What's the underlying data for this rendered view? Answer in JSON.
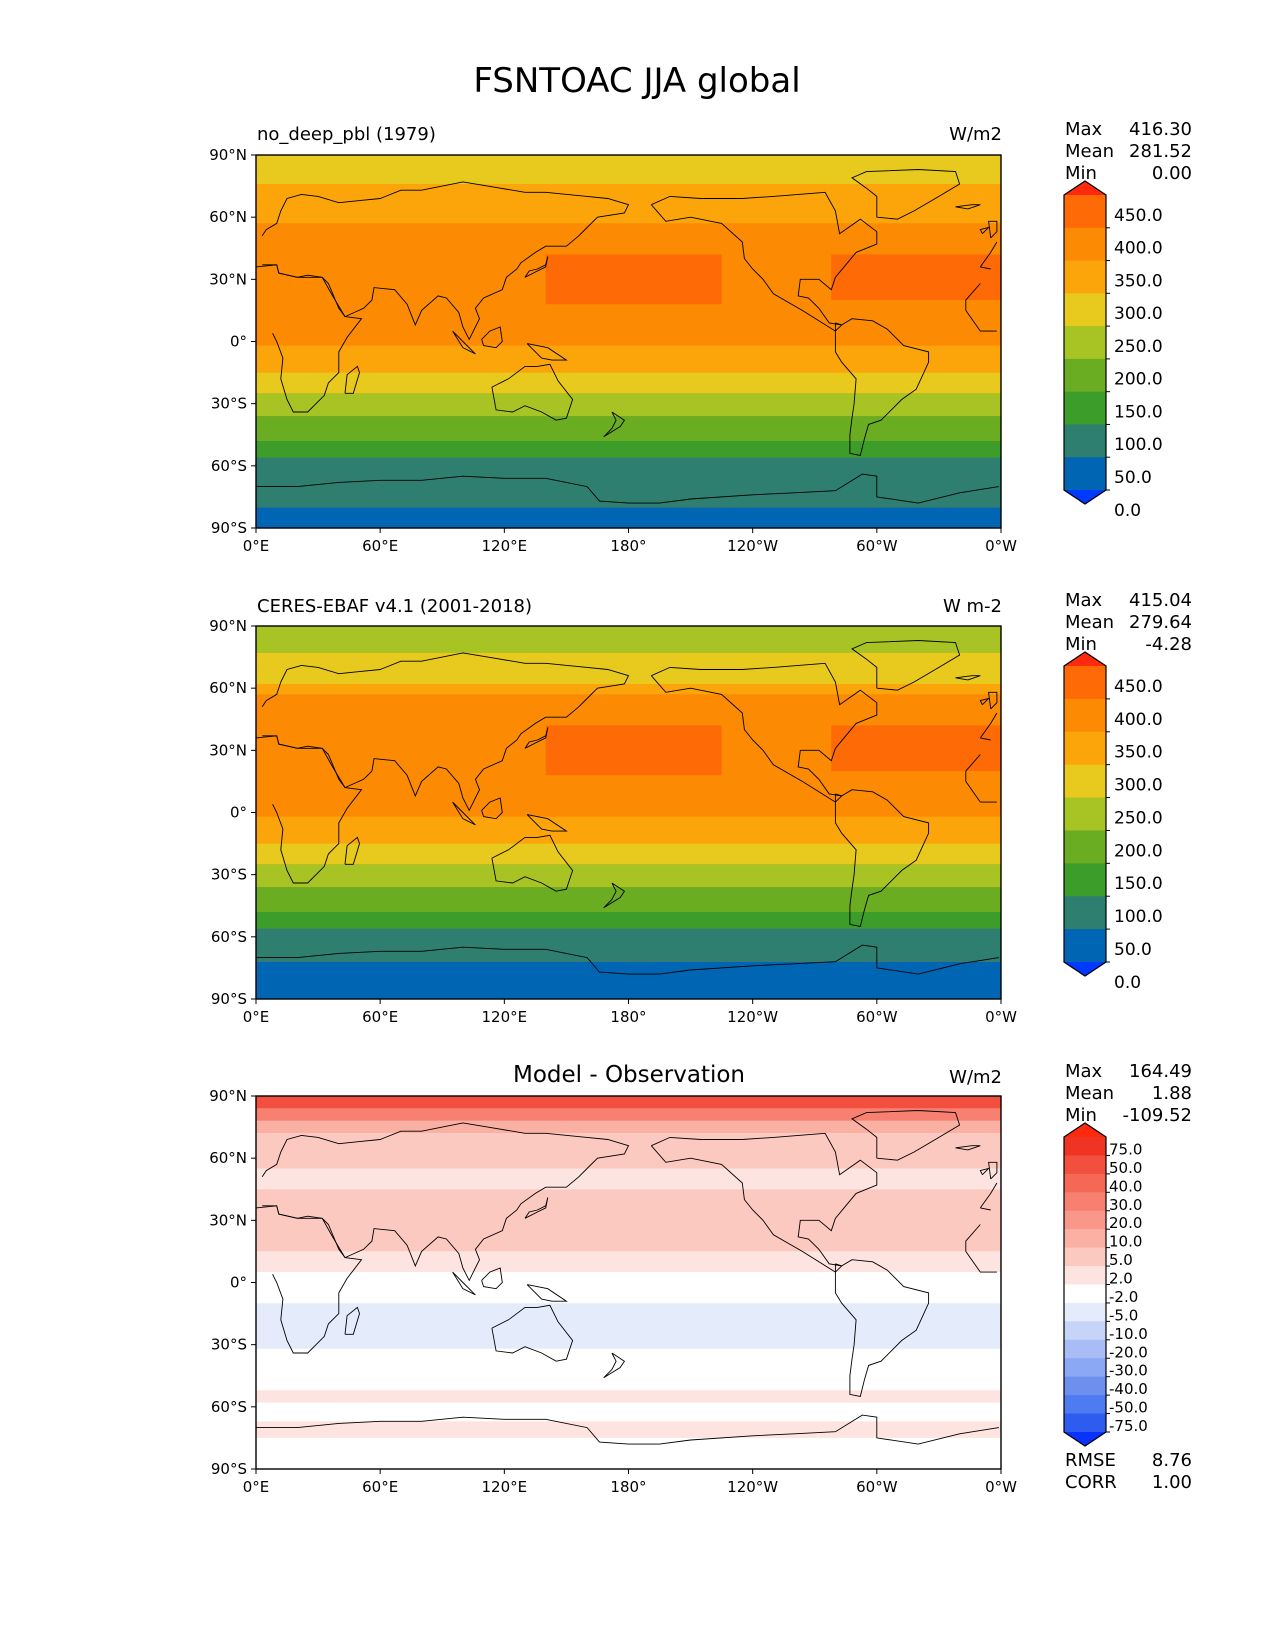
{
  "figure": {
    "title": "FSNTOAC JJA global"
  },
  "axes": {
    "lat_ticks": [
      "90°N",
      "60°N",
      "30°N",
      "0°",
      "30°S",
      "60°S",
      "90°S"
    ],
    "lon_ticks": [
      "0°E",
      "60°E",
      "120°E",
      "180°",
      "120°W",
      "60°W",
      "0°W"
    ]
  },
  "colors": {
    "main_levels": [
      "#0039ff",
      "#0066b3",
      "#2e7f70",
      "#3d9d2a",
      "#6aad22",
      "#a7c424",
      "#e8c91e",
      "#fca50a",
      "#fd8a03",
      "#fd6a06",
      "#ff2a0e"
    ],
    "diff_levels": [
      "#0a32ff",
      "#2f5cf0",
      "#4f7bf0",
      "#6d90ef",
      "#8aa8f3",
      "#a9bcf5",
      "#c6d4f8",
      "#e4ebfb",
      "#ffffff",
      "#fde4e0",
      "#fcc9c0",
      "#fbb0a4",
      "#f9988a",
      "#f78070",
      "#f56856",
      "#f24f3e",
      "#ef3424",
      "#ff2a0e"
    ]
  },
  "chart_data": [
    {
      "type": "heatmap",
      "name": "test",
      "title": "no_deep_pbl (1979)",
      "units": "W/m2",
      "stats": {
        "max_label": "Max",
        "max": "416.30",
        "mean_label": "Mean",
        "mean": "281.52",
        "min_label": "Min",
        "min": "0.00"
      },
      "colorbar": {
        "levels": [
          "450.0",
          "400.0",
          "350.0",
          "300.0",
          "250.0",
          "200.0",
          "150.0",
          "100.0",
          "50.0",
          "0.0"
        ],
        "extend": "both"
      },
      "zonal_bands": [
        {
          "from": 90,
          "to": 82,
          "value": 260
        },
        {
          "from": 82,
          "to": 76,
          "value": 280
        },
        {
          "from": 76,
          "to": 67,
          "value": 320
        },
        {
          "from": 67,
          "to": 57,
          "value": 345
        },
        {
          "from": 57,
          "to": 40,
          "value": 360
        },
        {
          "from": 40,
          "to": 18,
          "value": 375
        },
        {
          "from": 18,
          "to": -2,
          "value": 360
        },
        {
          "from": -2,
          "to": -8,
          "value": 330
        },
        {
          "from": -8,
          "to": -15,
          "value": 310
        },
        {
          "from": -15,
          "to": -20,
          "value": 290
        },
        {
          "from": -20,
          "to": -25,
          "value": 270
        },
        {
          "from": -25,
          "to": -30,
          "value": 240
        },
        {
          "from": -30,
          "to": -36,
          "value": 215
        },
        {
          "from": -36,
          "to": -42,
          "value": 185
        },
        {
          "from": -42,
          "to": -48,
          "value": 150
        },
        {
          "from": -48,
          "to": -56,
          "value": 110
        },
        {
          "from": -56,
          "to": -80,
          "value": 70
        },
        {
          "from": -80,
          "to": -90,
          "value": 25
        }
      ]
    },
    {
      "type": "heatmap",
      "name": "reference",
      "title": "CERES-EBAF v4.1 (2001-2018)",
      "units": "W m-2",
      "stats": {
        "max_label": "Max",
        "max": "415.04",
        "mean_label": "Mean",
        "mean": "279.64",
        "min_label": "Min",
        "min": "-4.28"
      },
      "colorbar": {
        "levels": [
          "450.0",
          "400.0",
          "350.0",
          "300.0",
          "250.0",
          "200.0",
          "150.0",
          "100.0",
          "50.0",
          "0.0"
        ],
        "extend": "both"
      },
      "zonal_bands": [
        {
          "from": 90,
          "to": 77,
          "value": 230
        },
        {
          "from": 77,
          "to": 70,
          "value": 255
        },
        {
          "from": 70,
          "to": 62,
          "value": 290
        },
        {
          "from": 62,
          "to": 57,
          "value": 320
        },
        {
          "from": 57,
          "to": 42,
          "value": 360
        },
        {
          "from": 42,
          "to": 18,
          "value": 375
        },
        {
          "from": 18,
          "to": -2,
          "value": 360
        },
        {
          "from": -2,
          "to": -8,
          "value": 330
        },
        {
          "from": -8,
          "to": -15,
          "value": 310
        },
        {
          "from": -15,
          "to": -20,
          "value": 290
        },
        {
          "from": -20,
          "to": -25,
          "value": 270
        },
        {
          "from": -25,
          "to": -30,
          "value": 240
        },
        {
          "from": -30,
          "to": -36,
          "value": 215
        },
        {
          "from": -36,
          "to": -42,
          "value": 185
        },
        {
          "from": -42,
          "to": -48,
          "value": 150
        },
        {
          "from": -48,
          "to": -56,
          "value": 110
        },
        {
          "from": -56,
          "to": -72,
          "value": 70
        },
        {
          "from": -72,
          "to": -90,
          "value": 25
        }
      ]
    },
    {
      "type": "heatmap",
      "name": "difference",
      "title": "Model - Observation",
      "units": "W/m2",
      "stats": {
        "max_label": "Max",
        "max": "164.49",
        "mean_label": "Mean",
        "mean": "1.88",
        "min_label": "Min",
        "min": "-109.52"
      },
      "metrics": {
        "rmse_label": "RMSE",
        "rmse": "8.76",
        "corr_label": "CORR",
        "corr": "1.00"
      },
      "colorbar": {
        "levels": [
          "75.0",
          "50.0",
          "40.0",
          "30.0",
          "20.0",
          "10.0",
          "5.0",
          "2.0",
          "-2.0",
          "-5.0",
          "-10.0",
          "-20.0",
          "-30.0",
          "-40.0",
          "-50.0",
          "-75.0"
        ],
        "extend": "both"
      },
      "zonal_bands": [
        {
          "from": 90,
          "to": 84,
          "value": 60
        },
        {
          "from": 84,
          "to": 78,
          "value": 35
        },
        {
          "from": 78,
          "to": 72,
          "value": 15
        },
        {
          "from": 72,
          "to": 55,
          "value": 7
        },
        {
          "from": 55,
          "to": 45,
          "value": 4
        },
        {
          "from": 45,
          "to": 15,
          "value": 6
        },
        {
          "from": 15,
          "to": 5,
          "value": 3
        },
        {
          "from": 5,
          "to": -10,
          "value": 0
        },
        {
          "from": -10,
          "to": -32,
          "value": -3
        },
        {
          "from": -32,
          "to": -52,
          "value": 0
        },
        {
          "from": -52,
          "to": -58,
          "value": 3
        },
        {
          "from": -58,
          "to": -67,
          "value": 0
        },
        {
          "from": -67,
          "to": -75,
          "value": 4
        },
        {
          "from": -75,
          "to": -90,
          "value": 0
        }
      ]
    }
  ]
}
